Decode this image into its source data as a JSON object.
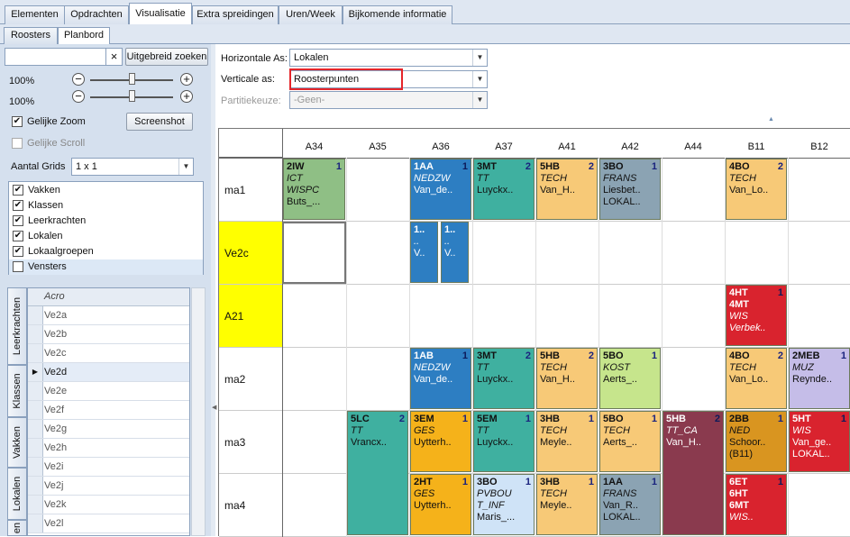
{
  "tabs": [
    "Elementen",
    "Opdrachten",
    "Visualisatie",
    "Extra spreidingen",
    "Uren/Week",
    "Bijkomende informatie"
  ],
  "subtabs": [
    "Roosters",
    "Planbord"
  ],
  "search": {
    "value": "",
    "clear": "×",
    "advanced_label": "Uitgebreid zoeken"
  },
  "zoom": {
    "h_label": "100%",
    "v_label": "100%",
    "h_level": 100,
    "v_level": 100,
    "minus": "−",
    "plus": "+"
  },
  "equal_zoom": {
    "label": "Gelijke Zoom",
    "checked": true
  },
  "screenshot_label": "Screenshot",
  "equal_scroll": {
    "label": "Gelijke Scroll",
    "checked": false
  },
  "grids": {
    "label": "Aantal Grids",
    "value": "1 x 1"
  },
  "checklist": [
    {
      "label": "Vakken",
      "checked": true
    },
    {
      "label": "Klassen",
      "checked": true
    },
    {
      "label": "Leerkrachten",
      "checked": true
    },
    {
      "label": "Lokalen",
      "checked": true
    },
    {
      "label": "Lokaalgroepen",
      "checked": true
    },
    {
      "label": "Vensters",
      "checked": false
    }
  ],
  "side_tabs": [
    "Leerkrachten",
    "Klassen",
    "Vakken",
    "Lokalen",
    "en"
  ],
  "grid": {
    "header": "Acro",
    "rows": [
      "Ve2a",
      "Ve2b",
      "Ve2c",
      "Ve2d",
      "Ve2e",
      "Ve2f",
      "Ve2g",
      "Ve2h",
      "Ve2i",
      "Ve2j",
      "Ve2k",
      "Ve2l"
    ],
    "current_marker": "▶"
  },
  "axes": {
    "h_label": "Horizontale As:",
    "h_value": "Lokalen",
    "v_label": "Verticale as:",
    "v_value": "Roosterpunten",
    "p_label": "Partitiekeuze:",
    "p_value": "-Geen-"
  },
  "board": {
    "columns": [
      "A34",
      "A35",
      "A36",
      "A37",
      "A41",
      "A42",
      "A44",
      "B11",
      "B12"
    ],
    "rows": [
      "ma1",
      "Ve2c",
      "A21",
      "ma2",
      "ma3",
      "ma4"
    ],
    "cards": [
      {
        "col": 0,
        "row": 0,
        "span": 1,
        "lines": [
          "2IW",
          "ICT",
          "WISPC",
          "Buts_..."
        ],
        "n": "1",
        "color": "#8fbf85"
      },
      {
        "col": 2,
        "row": 0,
        "span": 1,
        "lines": [
          "1AA",
          "NEDZW",
          "Van_de..",
          ""
        ],
        "n": "1",
        "color": "#2d7ec2"
      },
      {
        "col": 3,
        "row": 0,
        "span": 1,
        "lines": [
          "3MT",
          "TT",
          "Luyckx..",
          ""
        ],
        "n": "2",
        "color": "#3fb0a0"
      },
      {
        "col": 4,
        "row": 0,
        "span": 1,
        "lines": [
          "5HB",
          "TECH",
          "Van_H..",
          ""
        ],
        "n": "2",
        "color": "#f7c977"
      },
      {
        "col": 5,
        "row": 0,
        "span": 1,
        "lines": [
          "3BO",
          "FRANS",
          "Liesbet..",
          "LOKAL.."
        ],
        "n": "1",
        "color": "#8ba3b3"
      },
      {
        "col": 7,
        "row": 0,
        "span": 1,
        "lines": [
          "4BO",
          "TECH",
          "Van_Lo..",
          ""
        ],
        "n": "2",
        "color": "#f7c977"
      },
      {
        "col": 2,
        "row": 1,
        "span": 1,
        "lines": [
          "1..",
          "..",
          "V..",
          ""
        ],
        "n": "",
        "color": "#2d7ec2",
        "half": "left"
      },
      {
        "col": 2,
        "row": 1,
        "span": 1,
        "lines": [
          "1..",
          "..",
          "V..",
          ""
        ],
        "n": "",
        "color": "#2d7ec2",
        "half": "right"
      },
      {
        "col": 7,
        "row": 2,
        "span": 1,
        "lines": [
          "4HT",
          "4MT",
          "WIS",
          "Verbek.."
        ],
        "n": "1",
        "color": "#d9232e"
      },
      {
        "col": 2,
        "row": 3,
        "span": 1,
        "lines": [
          "1AB",
          "NEDZW",
          "Van_de..",
          ""
        ],
        "n": "1",
        "color": "#2d7ec2"
      },
      {
        "col": 3,
        "row": 3,
        "span": 1,
        "lines": [
          "3MT",
          "TT",
          "Luyckx..",
          ""
        ],
        "n": "2",
        "color": "#3fb0a0"
      },
      {
        "col": 4,
        "row": 3,
        "span": 1,
        "lines": [
          "5HB",
          "TECH",
          "Van_H..",
          ""
        ],
        "n": "2",
        "color": "#f7c977"
      },
      {
        "col": 5,
        "row": 3,
        "span": 1,
        "lines": [
          "5BO",
          "KOST",
          "Aerts_..",
          ""
        ],
        "n": "1",
        "color": "#c6e58c"
      },
      {
        "col": 7,
        "row": 3,
        "span": 1,
        "lines": [
          "4BO",
          "TECH",
          "Van_Lo..",
          ""
        ],
        "n": "2",
        "color": "#f7c977"
      },
      {
        "col": 8,
        "row": 3,
        "span": 1,
        "lines": [
          "2MEB",
          "MUZ",
          "Reynde..",
          ""
        ],
        "n": "1",
        "color": "#c5bde8"
      },
      {
        "col": 1,
        "row": 4,
        "span": 2,
        "lines": [
          "5LC",
          "TT",
          "Vrancx..",
          ""
        ],
        "n": "2",
        "color": "#3fb0a0"
      },
      {
        "col": 2,
        "row": 4,
        "span": 1,
        "lines": [
          "3EM",
          "GES",
          "Uytterh..",
          ""
        ],
        "n": "1",
        "color": "#f5b21a"
      },
      {
        "col": 3,
        "row": 4,
        "span": 1,
        "lines": [
          "5EM",
          "TT",
          "Luyckx..",
          ""
        ],
        "n": "1",
        "color": "#3fb0a0"
      },
      {
        "col": 4,
        "row": 4,
        "span": 1,
        "lines": [
          "3HB",
          "TECH",
          "Meyle..",
          ""
        ],
        "n": "1",
        "color": "#f7c977"
      },
      {
        "col": 5,
        "row": 4,
        "span": 1,
        "lines": [
          "5BO",
          "TECH",
          "Aerts_..",
          ""
        ],
        "n": "1",
        "color": "#f7c977"
      },
      {
        "col": 6,
        "row": 4,
        "span": 2,
        "lines": [
          "5HB",
          "TT_CA",
          "Van_H..",
          ""
        ],
        "n": "2",
        "color": "#8a3a4e"
      },
      {
        "col": 7,
        "row": 4,
        "span": 1,
        "lines": [
          "2BB",
          "NED",
          "Schoor..",
          "(B11)"
        ],
        "n": "1",
        "color": "#d99520"
      },
      {
        "col": 8,
        "row": 4,
        "span": 1,
        "lines": [
          "5HT",
          "WIS",
          "Van_ge..",
          "LOKAL.."
        ],
        "n": "1",
        "color": "#d9232e"
      },
      {
        "col": 2,
        "row": 5,
        "span": 1,
        "lines": [
          "2HT",
          "GES",
          "Uytterh..",
          ""
        ],
        "n": "1",
        "color": "#f5b21a"
      },
      {
        "col": 3,
        "row": 5,
        "span": 1,
        "lines": [
          "3BO",
          "PVBOU",
          "T_INF",
          "Maris_..."
        ],
        "n": "1",
        "color": "#cfe3f7"
      },
      {
        "col": 4,
        "row": 5,
        "span": 1,
        "lines": [
          "3HB",
          "TECH",
          "Meyle..",
          ""
        ],
        "n": "1",
        "color": "#f7c977"
      },
      {
        "col": 5,
        "row": 5,
        "span": 1,
        "lines": [
          "1AA",
          "FRANS",
          "Van_R..",
          "LOKAL.."
        ],
        "n": "1",
        "color": "#8ba3b3"
      },
      {
        "col": 7,
        "row": 5,
        "span": 1,
        "lines": [
          "6ET",
          "6HT",
          "6MT",
          "WIS.."
        ],
        "n": "1",
        "color": "#d9232e"
      }
    ]
  },
  "colors": {
    "accent_red": "#e5252a",
    "highlight_yellow": "#ffff00",
    "selection": "#e4ecf7"
  }
}
